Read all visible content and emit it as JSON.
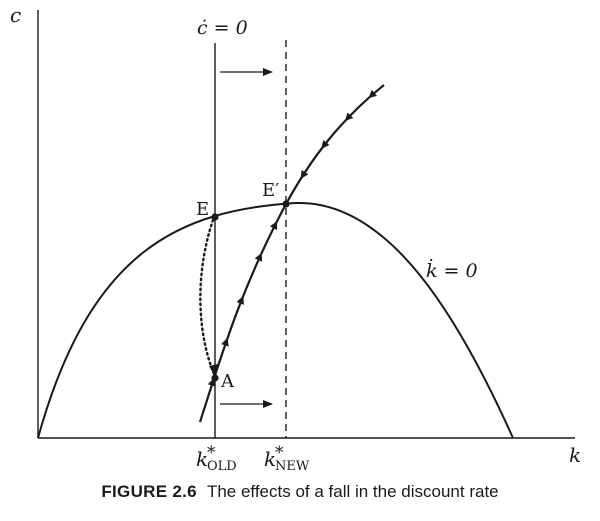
{
  "figure": {
    "number": "FIGURE 2.6",
    "title": "The effects of a fall in the discount rate"
  },
  "axes": {
    "y_label": "c",
    "x_label": "k"
  },
  "loci": {
    "c_dot_zero": "ċ = 0",
    "k_dot_zero": "k̇ = 0"
  },
  "points": {
    "E": "E",
    "E_prime": "E′",
    "A": "A"
  },
  "ticks": {
    "k_old_base": "k",
    "k_old_sup": "*",
    "k_old_sub": "OLD",
    "k_new_base": "k",
    "k_new_sup": "*",
    "k_new_sub": "NEW"
  },
  "colors": {
    "ink": "#1a1a1a",
    "background": "#ffffff"
  }
}
